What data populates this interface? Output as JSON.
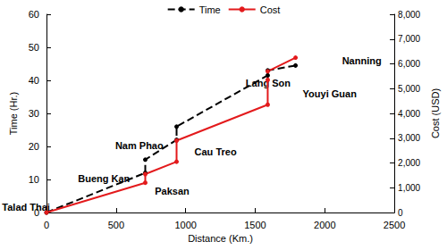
{
  "chart_data": {
    "type": "line",
    "xlabel": "Distance (Km.)",
    "ylabel": "Time (Hr.)",
    "y2label": "Cost (USD)",
    "xlim": [
      0,
      2500
    ],
    "xticks": [
      0,
      500,
      1000,
      1500,
      2000,
      2500
    ],
    "ylim": [
      0,
      60
    ],
    "yticks": [
      0,
      10,
      20,
      30,
      40,
      50,
      60
    ],
    "y2lim": [
      0,
      8000
    ],
    "y2ticks": [
      0,
      {
        "value": 1000,
        "label": "1,000"
      },
      {
        "value": 2000,
        "label": "2,000"
      },
      {
        "value": 3000,
        "label": "3,000"
      },
      {
        "value": 4000,
        "label": "4,000"
      },
      {
        "value": 5000,
        "label": "5,000"
      },
      {
        "value": 6000,
        "label": "6,000"
      },
      {
        "value": 7000,
        "label": "7,000"
      },
      {
        "value": 8000,
        "label": "8,000"
      }
    ],
    "grid": false,
    "legend": "top",
    "series": [
      {
        "name": "Time",
        "color": "#000000",
        "line_style": "dashed",
        "marker": "circle",
        "x": [
          0,
          710,
          710,
          935,
          935,
          1590,
          1590,
          1790
        ],
        "values": [
          0,
          12,
          16,
          22,
          26,
          41.5,
          43,
          44.5
        ]
      },
      {
        "name": "Cost",
        "color": "#e31a1c",
        "line_style": "solid",
        "marker": "circle",
        "axis": "y2",
        "x": [
          0,
          710,
          710,
          935,
          935,
          1590,
          1590,
          1590,
          1790
        ],
        "values": [
          0,
          1200,
          1550,
          2050,
          2900,
          4350,
          5350,
          5700,
          6250
        ]
      }
    ],
    "annotations": [
      {
        "text": "Talad Thai",
        "x": -147,
        "y": 1.6
      },
      {
        "text": "Bueng Kan",
        "x": 413,
        "y": 10.4
      },
      {
        "text": "Paksan",
        "x": 903,
        "y": 6.5
      },
      {
        "text": "Nam Phao",
        "x": 667,
        "y": 20.4
      },
      {
        "text": "Cau Treo",
        "x": 1215,
        "y": 18.3
      },
      {
        "text": "Lang Son",
        "x": 1593,
        "y": 39.2
      },
      {
        "text": "Youyi Guan",
        "x": 2035,
        "y": 36
      },
      {
        "text": "Nanning",
        "x": 2266,
        "y": 46
      }
    ]
  }
}
